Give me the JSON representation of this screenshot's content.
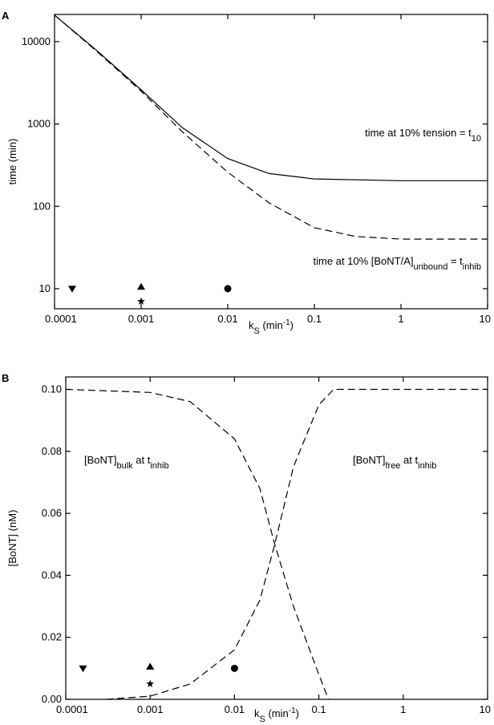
{
  "chart_data": [
    {
      "type": "line",
      "label": "A",
      "x_label": [
        {
          "text": "k"
        },
        {
          "text": "S",
          "sub": true
        },
        {
          "text": " (min"
        },
        {
          "text": "-1",
          "sup": true
        },
        {
          "text": ")"
        }
      ],
      "y_label": [
        {
          "text": "time (min)"
        }
      ],
      "xscale": "log",
      "yscale": "log",
      "xlim": [
        0.0001,
        10
      ],
      "xticks": [
        0.0001,
        0.001,
        0.01,
        0.1,
        1,
        10
      ],
      "ylim": [
        5.7,
        21400
      ],
      "yticks": [
        10,
        100,
        1000,
        10000
      ],
      "series": [
        {
          "color": "#000000",
          "dash": false,
          "x": [
            0.0001,
            0.0003,
            0.001,
            0.003,
            0.01,
            0.03,
            0.1,
            1,
            10
          ],
          "values": [
            21000,
            8000,
            2600,
            900,
            380,
            250,
            215,
            205,
            205
          ]
        },
        {
          "color": "#000000",
          "dash": true,
          "x": [
            0.0001,
            0.0003,
            0.001,
            0.003,
            0.01,
            0.03,
            0.1,
            0.3,
            1,
            10
          ],
          "values": [
            21000,
            7800,
            2500,
            800,
            260,
            110,
            55,
            43,
            40,
            40
          ]
        }
      ],
      "points": [
        {
          "marker": "triangle-down",
          "x": 0.00016,
          "y": 10
        },
        {
          "marker": "triangle-up",
          "x": 0.001,
          "y": 10.5
        },
        {
          "marker": "star",
          "x": 0.001,
          "y": 7
        },
        {
          "marker": "circle",
          "x": 0.01,
          "y": 10
        }
      ],
      "annotations": [
        [
          {
            "text": "time at 10% tension = t"
          },
          {
            "text": "10",
            "sub": true
          }
        ],
        [
          {
            "text": "time at 10% [BoNT/A]"
          },
          {
            "text": "unbound",
            "sub": true
          },
          {
            "text": " = t"
          },
          {
            "text": "inhib",
            "sub": true
          }
        ]
      ]
    },
    {
      "type": "line",
      "label": "B",
      "x_label": [
        {
          "text": "k"
        },
        {
          "text": "S",
          "sub": true
        },
        {
          "text": " (min"
        },
        {
          "text": "-1",
          "sup": true
        },
        {
          "text": ")"
        }
      ],
      "y_label": [
        {
          "text": "[BoNT] (nM)"
        }
      ],
      "xscale": "log",
      "yscale": "linear",
      "xlim": [
        0.0001,
        10
      ],
      "xticks": [
        0.0001,
        0.001,
        0.01,
        0.1,
        1,
        10
      ],
      "ylim": [
        0,
        0.104
      ],
      "yticks": [
        {
          "value": 0,
          "label": "0.00"
        },
        {
          "value": 0.02,
          "label": "0.02"
        },
        {
          "value": 0.04,
          "label": "0.04"
        },
        {
          "value": 0.06,
          "label": "0.06"
        },
        {
          "value": 0.08,
          "label": "0.08"
        },
        {
          "value": 0.1,
          "label": "0.10"
        }
      ],
      "series": [
        {
          "color": "#000000",
          "dash": true,
          "x": [
            0.0001,
            0.001,
            0.003,
            0.01,
            0.02,
            0.03,
            0.05,
            0.1,
            0.13
          ],
          "values": [
            0.1,
            0.099,
            0.096,
            0.084,
            0.068,
            0.05,
            0.03,
            0.008,
            0
          ]
        },
        {
          "color": "#000000",
          "dash": true,
          "x": [
            0.0003,
            0.001,
            0.003,
            0.01,
            0.02,
            0.03,
            0.05,
            0.1,
            0.15,
            10
          ],
          "values": [
            0,
            0.001,
            0.005,
            0.016,
            0.032,
            0.05,
            0.075,
            0.095,
            0.1,
            0.1
          ]
        }
      ],
      "points": [
        {
          "marker": "triangle-down",
          "x": 0.00016,
          "y": 0.01
        },
        {
          "marker": "triangle-up",
          "x": 0.001,
          "y": 0.0105
        },
        {
          "marker": "star",
          "x": 0.001,
          "y": 0.005
        },
        {
          "marker": "circle",
          "x": 0.01,
          "y": 0.01
        }
      ],
      "annotations": [
        [
          {
            "text": "[BoNT]"
          },
          {
            "text": "bulk",
            "sub": true
          },
          {
            "text": " at t"
          },
          {
            "text": "inhib",
            "sub": true
          }
        ],
        [
          {
            "text": "[BoNT]"
          },
          {
            "text": "free",
            "sub": true
          },
          {
            "text": " at t"
          },
          {
            "text": "inhib",
            "sub": true
          }
        ]
      ]
    }
  ]
}
